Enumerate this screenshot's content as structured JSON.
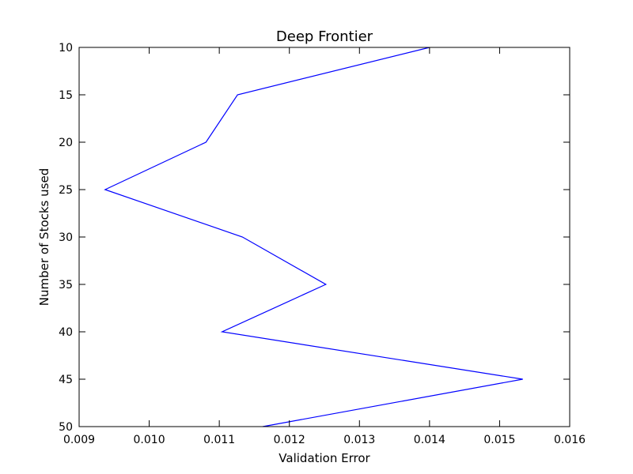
{
  "chart_data": {
    "type": "line",
    "title": "Deep Frontier",
    "xlabel": "Validation Error",
    "ylabel": "Number of Stocks used",
    "xlim": [
      0.009,
      0.016
    ],
    "ylim": [
      10,
      50
    ],
    "y_inverted": true,
    "grid": false,
    "x_ticks": [
      "0.009",
      "0.010",
      "0.011",
      "0.012",
      "0.013",
      "0.014",
      "0.015",
      "0.016"
    ],
    "y_ticks": [
      "10",
      "15",
      "20",
      "25",
      "30",
      "35",
      "40",
      "45",
      "50"
    ],
    "series": [
      {
        "color": "#0000ff",
        "points": [
          {
            "x": 0.014,
            "y": 10
          },
          {
            "x": 0.01126,
            "y": 15
          },
          {
            "x": 0.01081,
            "y": 20
          },
          {
            "x": 0.00937,
            "y": 25
          },
          {
            "x": 0.01133,
            "y": 30
          },
          {
            "x": 0.01252,
            "y": 35
          },
          {
            "x": 0.01104,
            "y": 40
          },
          {
            "x": 0.01533,
            "y": 45
          },
          {
            "x": 0.01162,
            "y": 50
          }
        ]
      }
    ]
  }
}
